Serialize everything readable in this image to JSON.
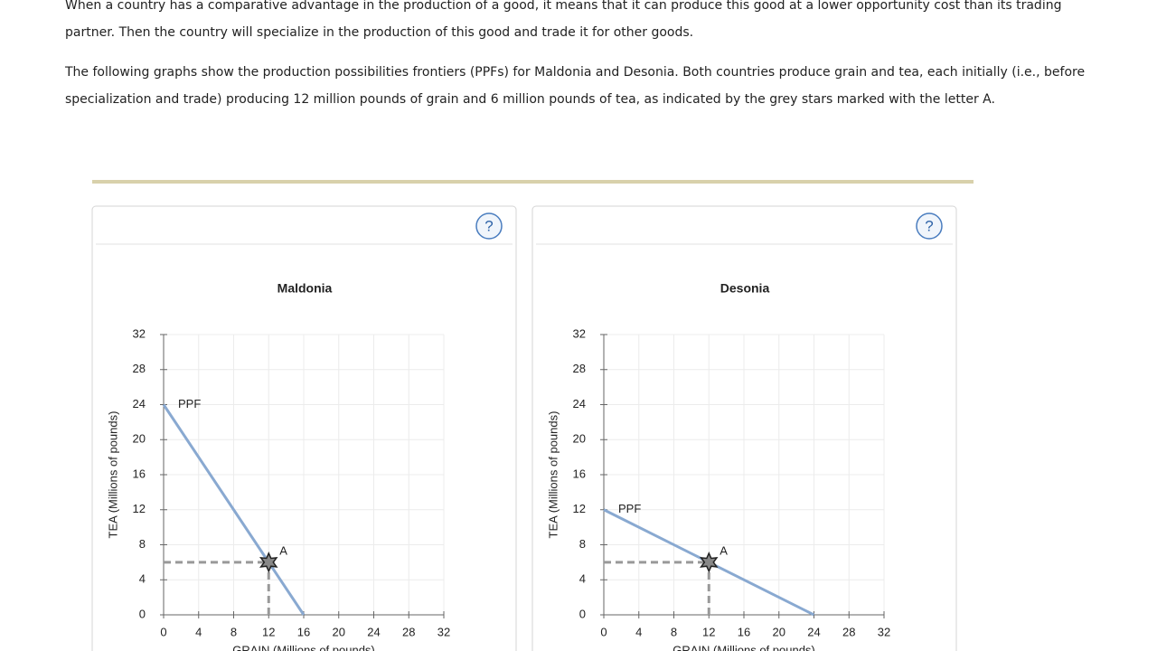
{
  "paragraphs": [
    "When a country has a comparative advantage in the production of a good, it means that it can produce this good at a lower opportunity cost than its trading partner. Then the country will specialize in the production of this good and trade it for other goods.",
    "The following graphs show the production possibilities frontiers (PPFs) for Maldonia and Desonia. Both countries produce grain and tea, each initially (i.e., before specialization and trade) producing 12 million pounds of grain and 6 million pounds of tea, as indicated by the grey stars marked with the letter A."
  ],
  "help": "?",
  "chart_data": [
    {
      "type": "line",
      "title": "Maldonia",
      "x_label": "GRAIN (Millions of pounds)",
      "y_label": "TEA (Millions of pounds)",
      "xlim": [
        0,
        32
      ],
      "ylim": [
        0,
        32
      ],
      "xticks": [
        0,
        4,
        8,
        12,
        16,
        20,
        24,
        28,
        32
      ],
      "yticks": [
        0,
        4,
        8,
        12,
        16,
        20,
        24,
        28,
        32
      ],
      "grid": true,
      "series": [
        {
          "name": "PPF",
          "color": "#89a9d1",
          "x": [
            0,
            16
          ],
          "values": [
            24,
            0
          ]
        }
      ],
      "point": {
        "label": "A",
        "x": 12,
        "y": 6
      }
    },
    {
      "type": "line",
      "title": "Desonia",
      "x_label": "GRAIN (Millions of pounds)",
      "y_label": "TEA (Millions of pounds)",
      "xlim": [
        0,
        32
      ],
      "ylim": [
        0,
        32
      ],
      "xticks": [
        0,
        4,
        8,
        12,
        16,
        20,
        24,
        28,
        32
      ],
      "yticks": [
        0,
        4,
        8,
        12,
        16,
        20,
        24,
        28,
        32
      ],
      "grid": true,
      "series": [
        {
          "name": "PPF",
          "color": "#89a9d1",
          "x": [
            0,
            24
          ],
          "values": [
            12,
            0
          ]
        }
      ],
      "point": {
        "label": "A",
        "x": 12,
        "y": 6
      }
    }
  ]
}
